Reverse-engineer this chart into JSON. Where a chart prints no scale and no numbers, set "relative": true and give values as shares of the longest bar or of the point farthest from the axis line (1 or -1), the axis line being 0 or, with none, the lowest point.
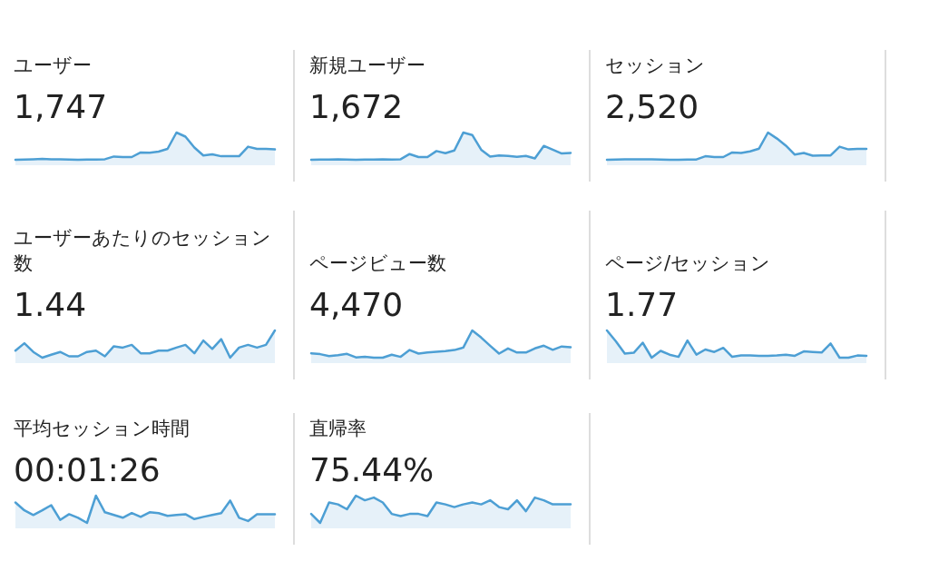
{
  "chart_data": [
    {
      "type": "area",
      "relative": true,
      "title": "ユーザー",
      "subtitle": "1,747",
      "color": "#4d9fd4",
      "categories": [
        null,
        null,
        null,
        null,
        null,
        null,
        null,
        null,
        null,
        null,
        null,
        null,
        null,
        null,
        null,
        null,
        null,
        null,
        null,
        null,
        null,
        null,
        null,
        null,
        null,
        null,
        null,
        null,
        null,
        null
      ],
      "values": [
        0,
        0.01,
        0.02,
        0.03,
        0.02,
        0.02,
        0.01,
        0,
        0.01,
        0.01,
        0.02,
        0.12,
        0.1,
        0.1,
        0.27,
        0.26,
        0.3,
        0.4,
        1,
        0.85,
        0.45,
        0.16,
        0.2,
        0.13,
        0.13,
        0.13,
        0.48,
        0.4,
        0.4,
        0.38
      ]
    },
    {
      "type": "area",
      "relative": true,
      "title": "新規ユーザー",
      "subtitle": "1,672",
      "color": "#4d9fd4",
      "categories": [
        null,
        null,
        null,
        null,
        null,
        null,
        null,
        null,
        null,
        null,
        null,
        null,
        null,
        null,
        null,
        null,
        null,
        null,
        null,
        null,
        null,
        null,
        null,
        null,
        null,
        null,
        null,
        null,
        null,
        null
      ],
      "values": [
        0,
        0.01,
        0.01,
        0.02,
        0.01,
        0,
        0.01,
        0.01,
        0.02,
        0.01,
        0.02,
        0.21,
        0.1,
        0.1,
        0.32,
        0.24,
        0.34,
        1,
        0.91,
        0.37,
        0.12,
        0.16,
        0.14,
        0.11,
        0.14,
        0.05,
        0.51,
        0.37,
        0.23,
        0.25
      ]
    },
    {
      "type": "area",
      "relative": true,
      "title": "セッション",
      "subtitle": "2,520",
      "color": "#4d9fd4",
      "categories": [
        null,
        null,
        null,
        null,
        null,
        null,
        null,
        null,
        null,
        null,
        null,
        null,
        null,
        null,
        null,
        null,
        null,
        null,
        null,
        null,
        null,
        null,
        null,
        null,
        null,
        null,
        null,
        null,
        null,
        null
      ],
      "values": [
        0,
        0.01,
        0.02,
        0.02,
        0.02,
        0.02,
        0.01,
        0,
        0,
        0.01,
        0.01,
        0.13,
        0.1,
        0.1,
        0.27,
        0.25,
        0.31,
        0.41,
        1,
        0.78,
        0.52,
        0.19,
        0.25,
        0.15,
        0.16,
        0.16,
        0.48,
        0.38,
        0.4,
        0.4
      ]
    },
    {
      "type": "area",
      "relative": true,
      "title": "ユーザーあたりのセッション数",
      "subtitle": "1.44",
      "color": "#4d9fd4",
      "categories": [
        null,
        null,
        null,
        null,
        null,
        null,
        null,
        null,
        null,
        null,
        null,
        null,
        null,
        null,
        null,
        null,
        null,
        null,
        null,
        null,
        null,
        null,
        null,
        null,
        null,
        null,
        null,
        null,
        null,
        null
      ],
      "values": [
        0.26,
        0.53,
        0.21,
        0,
        0.11,
        0.21,
        0.05,
        0.05,
        0.21,
        0.26,
        0.05,
        0.42,
        0.37,
        0.47,
        0.16,
        0.16,
        0.26,
        0.26,
        0.37,
        0.47,
        0.16,
        0.63,
        0.32,
        0.68,
        0,
        0.37,
        0.47,
        0.37,
        0.47,
        1
      ]
    },
    {
      "type": "area",
      "relative": true,
      "title": "ページビュー数",
      "subtitle": "4,470",
      "color": "#4d9fd4",
      "categories": [
        null,
        null,
        null,
        null,
        null,
        null,
        null,
        null,
        null,
        null,
        null,
        null,
        null,
        null,
        null,
        null,
        null,
        null,
        null,
        null,
        null,
        null,
        null,
        null,
        null,
        null,
        null,
        null,
        null,
        null
      ],
      "values": [
        0.16,
        0.13,
        0.06,
        0.09,
        0.14,
        0.01,
        0.03,
        0,
        0,
        0.11,
        0.03,
        0.28,
        0.15,
        0.19,
        0.22,
        0.24,
        0.28,
        0.37,
        1,
        0.74,
        0.44,
        0.15,
        0.34,
        0.19,
        0.19,
        0.34,
        0.44,
        0.29,
        0.41,
        0.38
      ]
    },
    {
      "type": "area",
      "relative": true,
      "title": "ページ/セッション",
      "subtitle": "1.77",
      "color": "#4d9fd4",
      "categories": [
        null,
        null,
        null,
        null,
        null,
        null,
        null,
        null,
        null,
        null,
        null,
        null,
        null,
        null,
        null,
        null,
        null,
        null,
        null,
        null,
        null,
        null,
        null,
        null,
        null,
        null,
        null,
        null,
        null,
        null
      ],
      "values": [
        1,
        0.6,
        0.15,
        0.18,
        0.55,
        0,
        0.25,
        0.11,
        0.03,
        0.63,
        0.11,
        0.3,
        0.21,
        0.36,
        0.03,
        0.08,
        0.08,
        0.07,
        0.07,
        0.08,
        0.11,
        0.07,
        0.23,
        0.21,
        0.19,
        0.52,
        0,
        0,
        0.08,
        0.07
      ]
    },
    {
      "type": "area",
      "relative": true,
      "title": "平均セッション時間",
      "subtitle": "00:01:26",
      "color": "#4d9fd4",
      "categories": [
        null,
        null,
        null,
        null,
        null,
        null,
        null,
        null,
        null,
        null,
        null,
        null,
        null,
        null,
        null,
        null,
        null,
        null,
        null,
        null,
        null,
        null,
        null,
        null,
        null,
        null,
        null,
        null,
        null,
        null
      ],
      "values": [
        0.75,
        0.46,
        0.29,
        0.46,
        0.65,
        0.11,
        0.32,
        0.19,
        0,
        1,
        0.39,
        0.29,
        0.19,
        0.36,
        0.22,
        0.39,
        0.36,
        0.26,
        0.29,
        0.32,
        0.14,
        0.22,
        0.29,
        0.36,
        0.82,
        0.19,
        0.07,
        0.32,
        0.32,
        0.32
      ]
    },
    {
      "type": "area",
      "relative": true,
      "title": "直帰率",
      "subtitle": "75.44%",
      "color": "#4d9fd4",
      "categories": [
        null,
        null,
        null,
        null,
        null,
        null,
        null,
        null,
        null,
        null,
        null,
        null,
        null,
        null,
        null,
        null,
        null,
        null,
        null,
        null,
        null,
        null,
        null,
        null,
        null,
        null,
        null,
        null,
        null,
        null
      ],
      "values": [
        0.33,
        0,
        0.75,
        0.68,
        0.5,
        1,
        0.83,
        0.93,
        0.75,
        0.33,
        0.25,
        0.33,
        0.33,
        0.25,
        0.75,
        0.68,
        0.58,
        0.68,
        0.75,
        0.68,
        0.83,
        0.58,
        0.5,
        0.83,
        0.43,
        0.93,
        0.83,
        0.68,
        0.68,
        0.68
      ]
    }
  ]
}
